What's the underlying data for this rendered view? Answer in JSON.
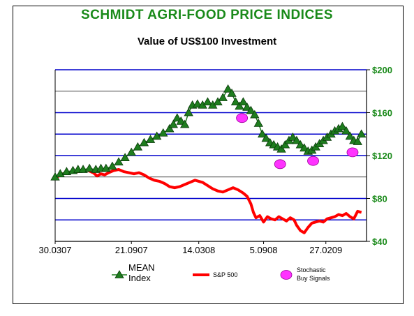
{
  "chart_data": {
    "type": "line",
    "title": "SCHMIDT AGRI-FOOD PRICE INDICES",
    "subtitle": "Value of US$100 Investment",
    "y_tick_labels": [
      "$200",
      "$160",
      "$120",
      "$80",
      "$40"
    ],
    "x_tick_labels": [
      "30.0307",
      "21.0907",
      "14.0308",
      "5.0908",
      "27.0209"
    ],
    "ylim": [
      40,
      200
    ],
    "grid": true,
    "legend_position": "bottom",
    "colors": {
      "title": "#1a8a1a",
      "mean_index": "#1e7d1e",
      "sp500": "#ff0000",
      "buy_signals": "#ff33ff",
      "grid_major": "#0000cc",
      "grid_minor": "#000000",
      "axis_labels": "#1a8a1a"
    },
    "series": [
      {
        "name": "MEAN Index",
        "legend_label": [
          "MEAN",
          "Index"
        ],
        "marker": "triangle",
        "points": [
          [
            0,
            100
          ],
          [
            4,
            103
          ],
          [
            9,
            105
          ],
          [
            14,
            106
          ],
          [
            18,
            107
          ],
          [
            22,
            107
          ],
          [
            27,
            108
          ],
          [
            32,
            107
          ],
          [
            36,
            108
          ],
          [
            40,
            108
          ],
          [
            45,
            110
          ],
          [
            50,
            114
          ],
          [
            55,
            118
          ],
          [
            60,
            123
          ],
          [
            65,
            128
          ],
          [
            70,
            132
          ],
          [
            75,
            135
          ],
          [
            80,
            138
          ],
          [
            85,
            141
          ],
          [
            90,
            145
          ],
          [
            93,
            149
          ],
          [
            96,
            155
          ],
          [
            99,
            152
          ],
          [
            102,
            149
          ],
          [
            105,
            160
          ],
          [
            108,
            167
          ],
          [
            112,
            168
          ],
          [
            116,
            167
          ],
          [
            120,
            170
          ],
          [
            124,
            167
          ],
          [
            128,
            170
          ],
          [
            132,
            174
          ],
          [
            136,
            182
          ],
          [
            139,
            178
          ],
          [
            142,
            170
          ],
          [
            145,
            166
          ],
          [
            148,
            170
          ],
          [
            151,
            165
          ],
          [
            154,
            162
          ],
          [
            157,
            158
          ],
          [
            160,
            150
          ],
          [
            163,
            140
          ],
          [
            166,
            136
          ],
          [
            169,
            132
          ],
          [
            172,
            130
          ],
          [
            175,
            128
          ],
          [
            178,
            126
          ],
          [
            181,
            130
          ],
          [
            184,
            134
          ],
          [
            187,
            137
          ],
          [
            190,
            134
          ],
          [
            193,
            130
          ],
          [
            196,
            127
          ],
          [
            199,
            124
          ],
          [
            202,
            125
          ],
          [
            205,
            128
          ],
          [
            208,
            131
          ],
          [
            211,
            134
          ],
          [
            214,
            137
          ],
          [
            217,
            140
          ],
          [
            220,
            143
          ],
          [
            223,
            145
          ],
          [
            226,
            147
          ],
          [
            229,
            143
          ],
          [
            232,
            138
          ],
          [
            235,
            134
          ],
          [
            238,
            133
          ],
          [
            241,
            140
          ]
        ]
      },
      {
        "name": "S&P 500",
        "points": [
          [
            0,
            99
          ],
          [
            3,
            101
          ],
          [
            6,
            103
          ],
          [
            10,
            104
          ],
          [
            14,
            105
          ],
          [
            18,
            105
          ],
          [
            22,
            106
          ],
          [
            26,
            106
          ],
          [
            30,
            104
          ],
          [
            33,
            101
          ],
          [
            36,
            103
          ],
          [
            39,
            102
          ],
          [
            42,
            104
          ],
          [
            46,
            106
          ],
          [
            50,
            107
          ],
          [
            54,
            105
          ],
          [
            58,
            104
          ],
          [
            62,
            103
          ],
          [
            66,
            104
          ],
          [
            70,
            102
          ],
          [
            74,
            99
          ],
          [
            78,
            97
          ],
          [
            82,
            96
          ],
          [
            86,
            94
          ],
          [
            90,
            91
          ],
          [
            94,
            90
          ],
          [
            98,
            91
          ],
          [
            102,
            93
          ],
          [
            106,
            95
          ],
          [
            110,
            97
          ],
          [
            113,
            96
          ],
          [
            116,
            95
          ],
          [
            120,
            92
          ],
          [
            124,
            89
          ],
          [
            128,
            87
          ],
          [
            132,
            86
          ],
          [
            136,
            88
          ],
          [
            140,
            90
          ],
          [
            144,
            88
          ],
          [
            148,
            85
          ],
          [
            151,
            82
          ],
          [
            154,
            75
          ],
          [
            156,
            67
          ],
          [
            158,
            62
          ],
          [
            161,
            64
          ],
          [
            164,
            58
          ],
          [
            167,
            63
          ],
          [
            170,
            61
          ],
          [
            173,
            60
          ],
          [
            176,
            63
          ],
          [
            179,
            61
          ],
          [
            182,
            59
          ],
          [
            185,
            62
          ],
          [
            188,
            60
          ],
          [
            190,
            55
          ],
          [
            193,
            50
          ],
          [
            196,
            48
          ],
          [
            199,
            53
          ],
          [
            202,
            57
          ],
          [
            205,
            58
          ],
          [
            208,
            59
          ],
          [
            211,
            58
          ],
          [
            214,
            61
          ],
          [
            217,
            62
          ],
          [
            220,
            63
          ],
          [
            223,
            65
          ],
          [
            226,
            64
          ],
          [
            229,
            66
          ],
          [
            232,
            63
          ],
          [
            235,
            61
          ],
          [
            238,
            68
          ],
          [
            241,
            67
          ]
        ]
      },
      {
        "name": "Stochastic Buy Signals",
        "legend_label": [
          "Stochastic",
          "Buy Signals"
        ],
        "marker": "circle",
        "points": [
          [
            147,
            155
          ],
          [
            177,
            112
          ],
          [
            203,
            115
          ],
          [
            234,
            123
          ]
        ]
      }
    ]
  }
}
